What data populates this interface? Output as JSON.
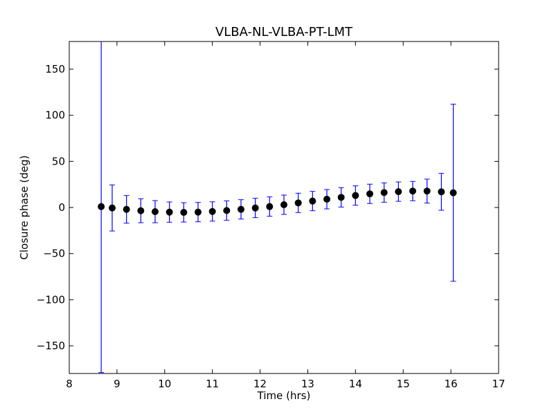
{
  "chart_data": {
    "type": "scatter",
    "title": "VLBA-NL-VLBA-PT-LMT",
    "xlabel": "Time (hrs)",
    "ylabel": "Closure phase (deg)",
    "xlim": [
      8,
      17
    ],
    "ylim": [
      -180,
      180
    ],
    "xticks": [
      8,
      9,
      10,
      11,
      12,
      13,
      14,
      15,
      16,
      17
    ],
    "xtick_labels": [
      "8",
      "9",
      "10",
      "11",
      "12",
      "13",
      "14",
      "15",
      "16",
      "17"
    ],
    "yticks": [
      -150,
      -100,
      -50,
      0,
      50,
      100,
      150
    ],
    "ytick_labels": [
      "−150",
      "−100",
      "−50",
      "0",
      "50",
      "100",
      "150"
    ],
    "grid": false,
    "colors": {
      "errorbar": "#0000ff",
      "marker": "#000000"
    },
    "series": [
      {
        "x": [
          8.67,
          8.9,
          9.2,
          9.5,
          9.8,
          10.1,
          10.4,
          10.7,
          11.0,
          11.3,
          11.6,
          11.9,
          12.2,
          12.5,
          12.8,
          13.1,
          13.4,
          13.7,
          14.0,
          14.3,
          14.6,
          14.9,
          15.2,
          15.5,
          15.8,
          16.05
        ],
        "y": [
          1,
          -0.5,
          -2,
          -3.5,
          -4.5,
          -5,
          -5.3,
          -5,
          -4.3,
          -3.3,
          -2,
          -0.5,
          1,
          3,
          5,
          7,
          9,
          11,
          13,
          14.8,
          16.2,
          17.2,
          17.8,
          17.8,
          17,
          16
        ],
        "yerr": [
          180,
          25,
          15,
          13,
          12,
          11,
          10.5,
          10.5,
          10.5,
          10.5,
          10.5,
          10.5,
          10.5,
          10.5,
          10.5,
          10.5,
          10.5,
          10.5,
          10.5,
          10.5,
          10.5,
          10.5,
          10.5,
          13,
          20,
          96
        ]
      }
    ]
  }
}
